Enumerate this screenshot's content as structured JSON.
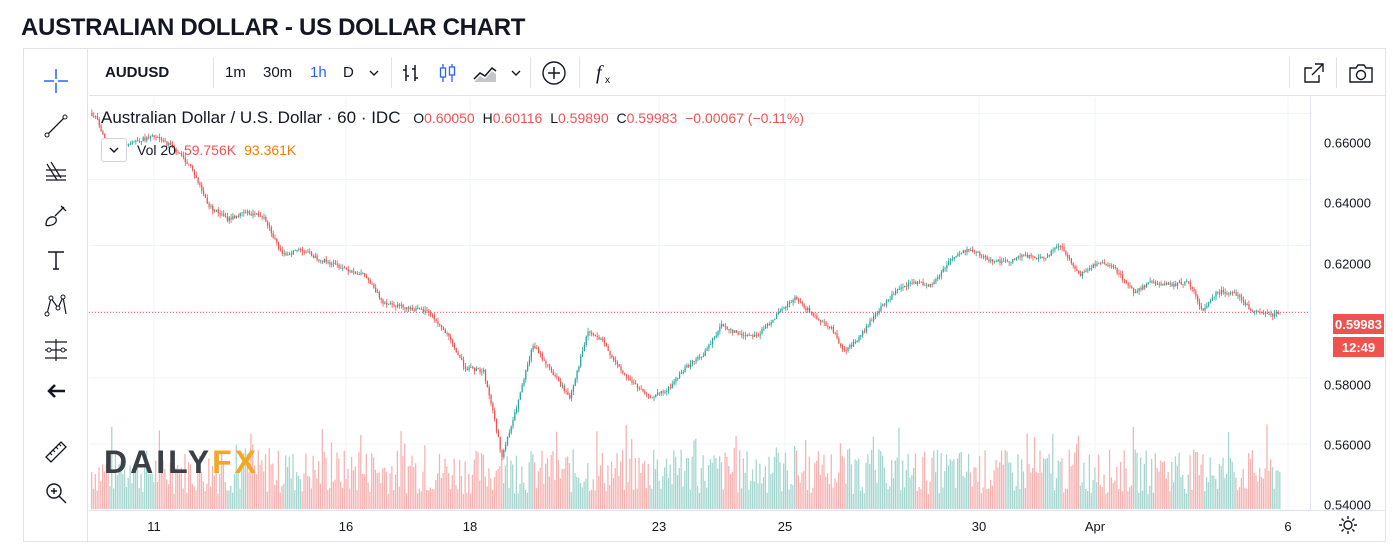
{
  "page": {
    "title": "AUSTRALIAN DOLLAR - US DOLLAR CHART"
  },
  "toolbar": {
    "symbol": "AUDUSD",
    "intervals": [
      "1m",
      "30m",
      "1h",
      "D"
    ],
    "active_interval": "1h",
    "icons": [
      "chevron-down-icon",
      "bar-chart-icon",
      "candlestick-icon",
      "area-chart-icon",
      "chevron-down-icon",
      "add-compare-icon",
      "indicators-fx-icon",
      "open-new-window-icon",
      "camera-icon"
    ]
  },
  "left_tools": [
    "crosshair-icon",
    "trend-line-icon",
    "fib-retracement-icon",
    "brush-icon",
    "text-icon",
    "pattern-icon",
    "prediction-icon",
    "back-arrow-icon",
    "ruler-icon",
    "zoom-in-icon"
  ],
  "legend": {
    "name": "Australian Dollar / U.S. Dollar · 60 · IDC",
    "open_label": "O",
    "open": "0.60050",
    "high_label": "H",
    "high": "0.60116",
    "low_label": "L",
    "low": "0.59890",
    "close_label": "C",
    "close": "0.59983",
    "change": "−0.00067 (−0.11%)",
    "volume_label": "Vol 20",
    "volume": "59.756K",
    "volume_ma": "93.361K"
  },
  "price_axis": {
    "labels": [
      "0.66000",
      "0.64000",
      "0.62000",
      "0.58000",
      "0.56000",
      "0.54000"
    ],
    "current_price": "0.59983",
    "countdown": "12:49"
  },
  "time_axis": {
    "labels": [
      "11",
      "16",
      "18",
      "23",
      "25",
      "30",
      "Apr",
      "6"
    ]
  },
  "watermark": {
    "daily": "DAILY",
    "fx": "FX"
  },
  "colors": {
    "up": "#26a69a",
    "down": "#ef5350",
    "accent": "#2962ff",
    "vol_up": "#a5d6d0",
    "vol_down": "#f5b3b1"
  },
  "chart_data": {
    "type": "candlestick",
    "title": "Australian Dollar / U.S. Dollar",
    "interval": "60",
    "ylim": [
      0.54,
      0.665
    ],
    "x_ticks": [
      "11",
      "16",
      "18",
      "23",
      "25",
      "30",
      "Apr",
      "6"
    ],
    "close_path": [
      [
        0,
        0.6602
      ],
      [
        4,
        0.658
      ],
      [
        10,
        0.649
      ],
      [
        20,
        0.651
      ],
      [
        35,
        0.653
      ],
      [
        45,
        0.65
      ],
      [
        55,
        0.644
      ],
      [
        65,
        0.632
      ],
      [
        75,
        0.628
      ],
      [
        85,
        0.63
      ],
      [
        95,
        0.629
      ],
      [
        105,
        0.617
      ],
      [
        115,
        0.619
      ],
      [
        125,
        0.616
      ],
      [
        135,
        0.614
      ],
      [
        150,
        0.611
      ],
      [
        160,
        0.603
      ],
      [
        175,
        0.601
      ],
      [
        185,
        0.6
      ],
      [
        195,
        0.593
      ],
      [
        205,
        0.583
      ],
      [
        215,
        0.582
      ],
      [
        220,
        0.57
      ],
      [
        225,
        0.556
      ],
      [
        232,
        0.569
      ],
      [
        242,
        0.59
      ],
      [
        252,
        0.582
      ],
      [
        262,
        0.574
      ],
      [
        272,
        0.594
      ],
      [
        280,
        0.591
      ],
      [
        290,
        0.582
      ],
      [
        305,
        0.574
      ],
      [
        315,
        0.576
      ],
      [
        325,
        0.583
      ],
      [
        335,
        0.587
      ],
      [
        345,
        0.596
      ],
      [
        355,
        0.593
      ],
      [
        365,
        0.593
      ],
      [
        375,
        0.599
      ],
      [
        385,
        0.604
      ],
      [
        395,
        0.599
      ],
      [
        405,
        0.595
      ],
      [
        412,
        0.588
      ],
      [
        420,
        0.592
      ],
      [
        430,
        0.6
      ],
      [
        440,
        0.606
      ],
      [
        450,
        0.609
      ],
      [
        460,
        0.608
      ],
      [
        470,
        0.616
      ],
      [
        480,
        0.619
      ],
      [
        490,
        0.616
      ],
      [
        500,
        0.615
      ],
      [
        510,
        0.617
      ],
      [
        520,
        0.616
      ],
      [
        530,
        0.62
      ],
      [
        540,
        0.611
      ],
      [
        550,
        0.615
      ],
      [
        560,
        0.613
      ],
      [
        570,
        0.606
      ],
      [
        580,
        0.609
      ],
      [
        590,
        0.608
      ],
      [
        600,
        0.609
      ],
      [
        608,
        0.6
      ],
      [
        615,
        0.606
      ],
      [
        625,
        0.606
      ],
      [
        635,
        0.6
      ],
      [
        645,
        0.599
      ],
      [
        650,
        0.59983
      ]
    ],
    "n_candles": 650,
    "volume_max_k": 250
  }
}
